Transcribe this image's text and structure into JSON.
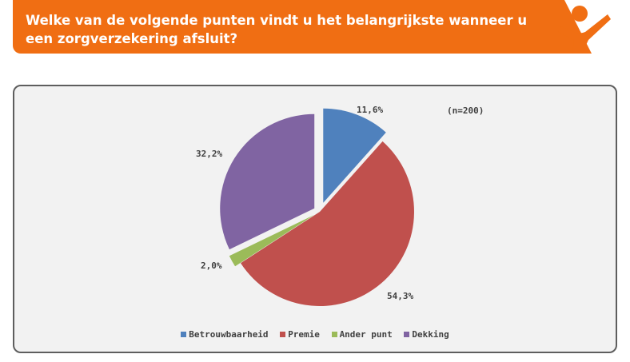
{
  "header": {
    "question": "Welke van de volgende punten vindt u het belangrijkste wanneer u een zorgverzekering afsluit?",
    "accent_color": "#f06e13",
    "logo_icon": "person-cheering-icon"
  },
  "chart_data": {
    "type": "pie",
    "note": "(n=200)",
    "legend_position": "bottom",
    "slices": [
      {
        "name": "Betrouwbaarheid",
        "value": 11.6,
        "label": "11,6%",
        "color": "#4f81bd"
      },
      {
        "name": "Premie",
        "value": 54.3,
        "label": "54,3%",
        "color": "#c0504d"
      },
      {
        "name": "Ander punt",
        "value": 2.0,
        "label": "2,0%",
        "color": "#9bbb59"
      },
      {
        "name": "Dekking",
        "value": 32.2,
        "label": "32,2%",
        "color": "#8064a2"
      }
    ]
  }
}
